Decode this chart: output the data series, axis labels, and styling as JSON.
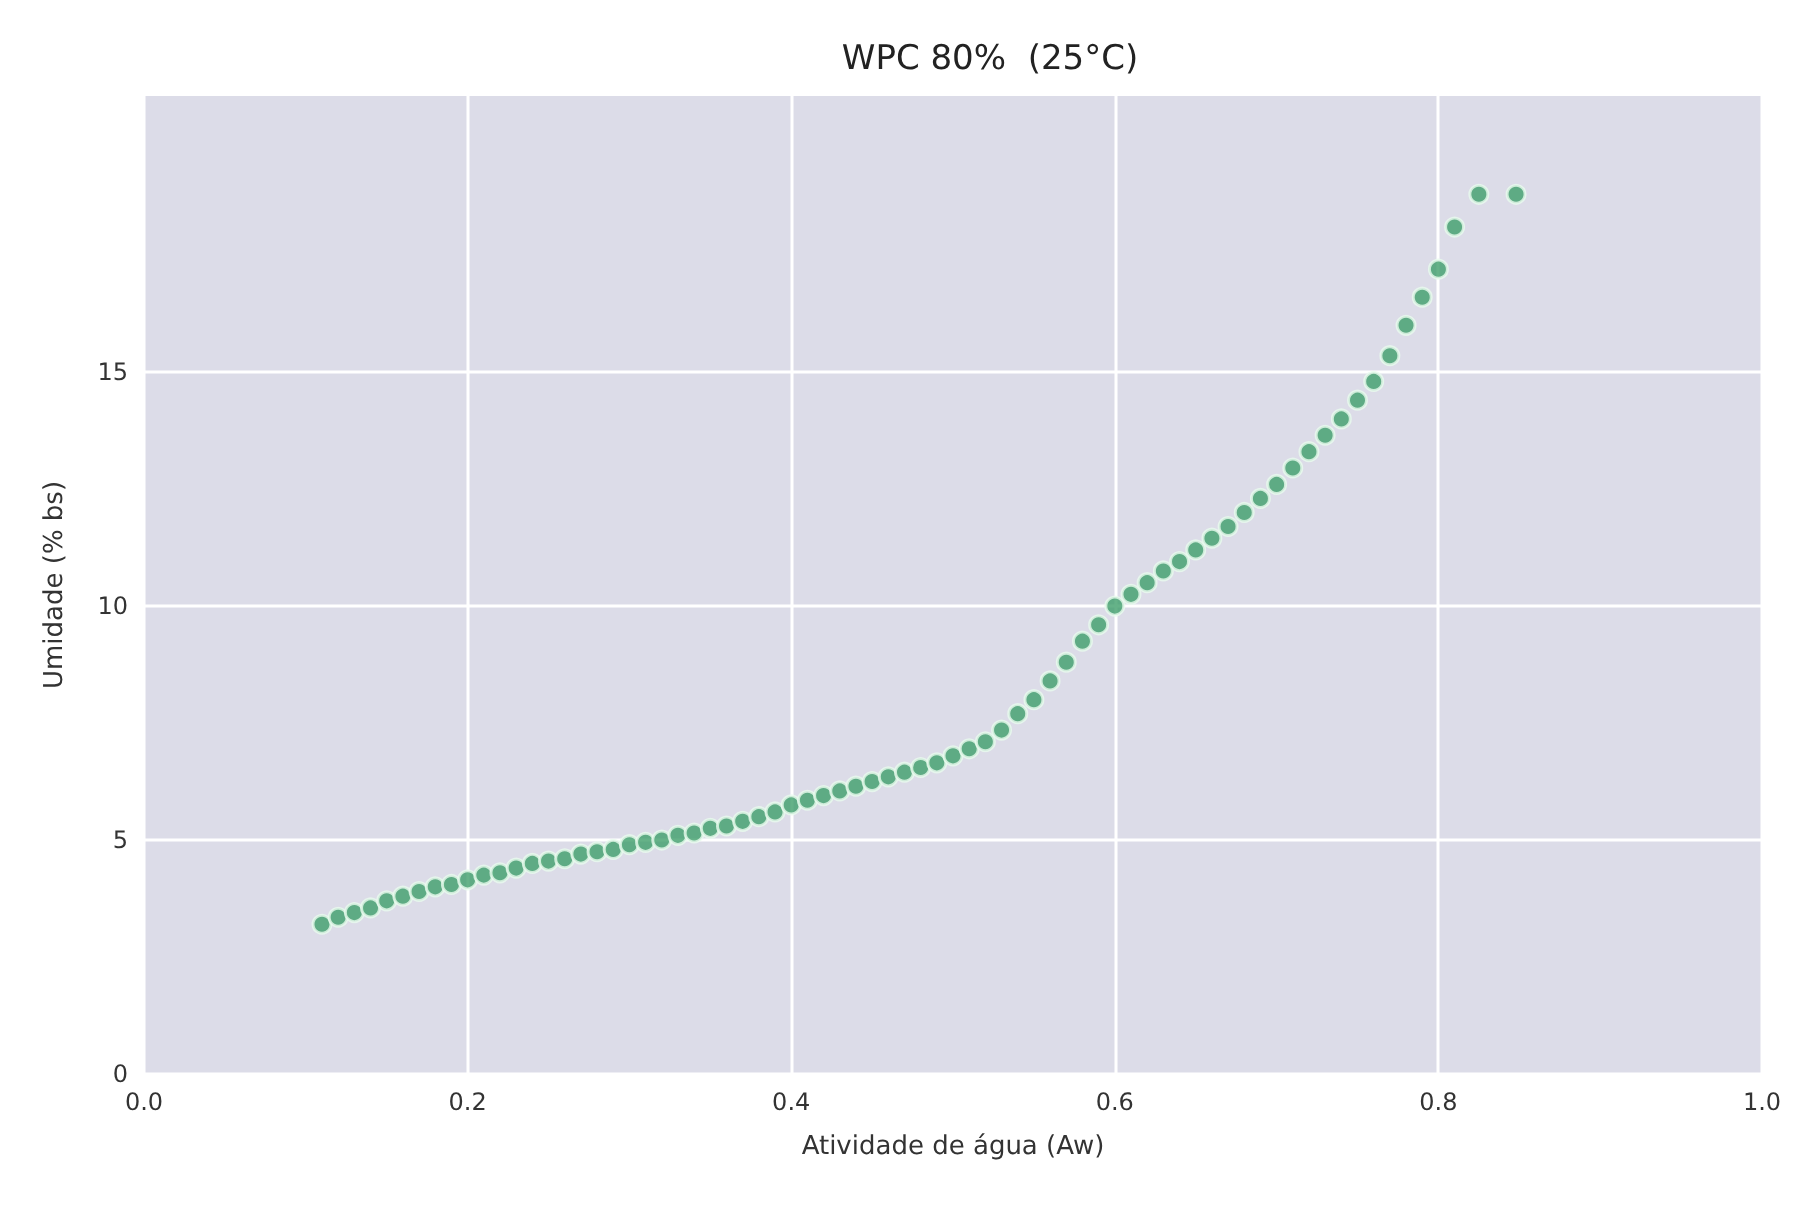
{
  "chart_data": {
    "type": "scatter",
    "title": "WPC 80%  (25°C)",
    "xlabel": "Atividade de água (Aw)",
    "ylabel": "Umidade (% bs)",
    "x": [
      0.11,
      0.12,
      0.13,
      0.14,
      0.15,
      0.16,
      0.17,
      0.18,
      0.19,
      0.2,
      0.21,
      0.22,
      0.23,
      0.24,
      0.25,
      0.26,
      0.27,
      0.28,
      0.29,
      0.3,
      0.31,
      0.32,
      0.33,
      0.34,
      0.35,
      0.36,
      0.37,
      0.38,
      0.39,
      0.4,
      0.41,
      0.42,
      0.43,
      0.44,
      0.45,
      0.46,
      0.47,
      0.48,
      0.49,
      0.5,
      0.51,
      0.52,
      0.53,
      0.54,
      0.55,
      0.56,
      0.57,
      0.58,
      0.59,
      0.6,
      0.61,
      0.62,
      0.63,
      0.64,
      0.65,
      0.66,
      0.67,
      0.68,
      0.69,
      0.7,
      0.71,
      0.72,
      0.73,
      0.74,
      0.75,
      0.76,
      0.77,
      0.78,
      0.79,
      0.8,
      0.81,
      0.825,
      0.848
    ],
    "series": [
      {
        "color": "#3f9f6a",
        "values": [
          3.2,
          3.35,
          3.45,
          3.55,
          3.7,
          3.8,
          3.9,
          4.0,
          4.05,
          4.15,
          4.25,
          4.3,
          4.4,
          4.5,
          4.55,
          4.6,
          4.7,
          4.75,
          4.8,
          4.9,
          4.95,
          5.0,
          5.1,
          5.15,
          5.25,
          5.3,
          5.4,
          5.5,
          5.6,
          5.75,
          5.85,
          5.95,
          6.05,
          6.15,
          6.25,
          6.35,
          6.45,
          6.55,
          6.65,
          6.8,
          6.95,
          7.1,
          7.35,
          7.7,
          8.0,
          8.4,
          8.8,
          9.25,
          9.6,
          10.0,
          10.25,
          10.5,
          10.75,
          10.95,
          11.2,
          11.45,
          11.7,
          12.0,
          12.3,
          12.6,
          12.95,
          13.3,
          13.65,
          14.0,
          14.4,
          14.8,
          15.35,
          16.0,
          16.6,
          17.2,
          18.1,
          18.8,
          18.8
        ]
      }
    ],
    "xlim": [
      0,
      1
    ],
    "xticks": [
      {
        "value": 0,
        "label": "0.0"
      },
      {
        "value": 0.2,
        "label": "0.2"
      },
      {
        "value": 0.4,
        "label": "0.4"
      },
      {
        "value": 0.6,
        "label": "0.6"
      },
      {
        "value": 0.8,
        "label": "0.8"
      },
      {
        "value": 1,
        "label": "1.0"
      }
    ],
    "ylim": [
      0,
      20.9
    ],
    "yticks": [
      0,
      5,
      10,
      15
    ],
    "grid": true,
    "marker": "circle"
  }
}
